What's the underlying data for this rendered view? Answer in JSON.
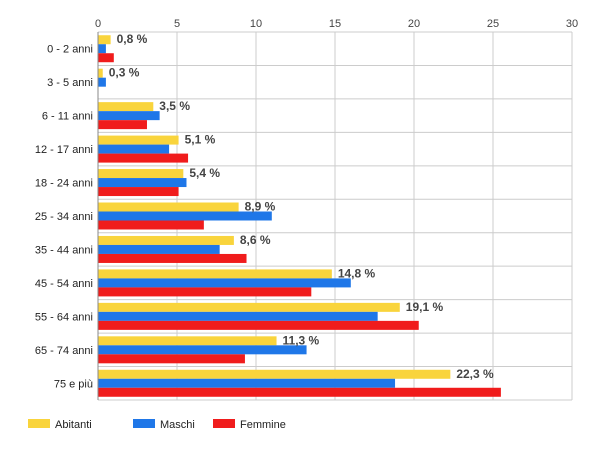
{
  "chart_data": {
    "type": "bar",
    "orientation": "horizontal",
    "categories": [
      "0 - 2 anni",
      "3 - 5 anni",
      "6 - 11 anni",
      "12 - 17 anni",
      "18 - 24 anni",
      "25 - 34 anni",
      "35 - 44 anni",
      "45 - 54 anni",
      "55 - 64 anni",
      "65 - 74 anni",
      "75 e più"
    ],
    "series": [
      {
        "name": "Abitanti",
        "color": "#f9d43c",
        "values": [
          0.8,
          0.3,
          3.5,
          5.1,
          5.4,
          8.9,
          8.6,
          14.8,
          19.1,
          11.3,
          22.3
        ]
      },
      {
        "name": "Maschi",
        "color": "#1f77e8",
        "values": [
          0.5,
          0.5,
          3.9,
          4.5,
          5.6,
          11.0,
          7.7,
          16.0,
          17.7,
          13.2,
          18.8
        ]
      },
      {
        "name": "Femmine",
        "color": "#f01c1c",
        "values": [
          1.0,
          0.0,
          3.1,
          5.7,
          5.1,
          6.7,
          9.4,
          13.5,
          20.3,
          9.3,
          25.5
        ]
      }
    ],
    "data_labels": [
      "0,8 %",
      "0,3 %",
      "3,5 %",
      "5,1 %",
      "5,4 %",
      "8,9 %",
      "8,6 %",
      "14,8 %",
      "19,1 %",
      "11,3 %",
      "22,3 %"
    ],
    "xticks": [
      "0",
      "5",
      "10",
      "15",
      "20",
      "25",
      "30"
    ],
    "xlim": [
      0,
      30
    ],
    "grid": true,
    "legend_position": "bottom-left",
    "title": "",
    "xlabel": "",
    "ylabel": ""
  }
}
